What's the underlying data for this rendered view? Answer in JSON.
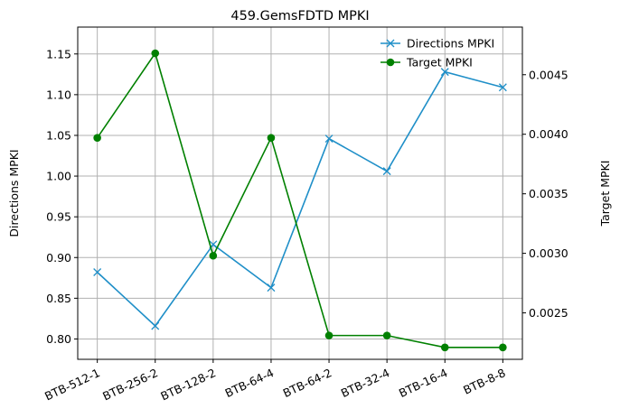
{
  "chart_data": {
    "type": "line",
    "title": "459.GemsFDTD MPKI",
    "categories": [
      "BTB-512-1",
      "BTB-256-2",
      "BTB-128-2",
      "BTB-64-4",
      "BTB-64-2",
      "BTB-32-4",
      "BTB-16-4",
      "BTB-8-8"
    ],
    "ylabel_left": "Directions MPKI",
    "ylabel_right": "Target MPKI",
    "ylim_left": [
      0.775,
      1.183
    ],
    "ylim_right": [
      0.00211,
      0.0049
    ],
    "yticks_left": [
      "0.80",
      "0.85",
      "0.90",
      "0.95",
      "1.00",
      "1.05",
      "1.10",
      "1.15"
    ],
    "yticks_left_values": [
      0.8,
      0.85,
      0.9,
      0.95,
      1.0,
      1.05,
      1.1,
      1.15
    ],
    "yticks_right": [
      "0.0025",
      "0.0030",
      "0.0035",
      "0.0040",
      "0.0045"
    ],
    "yticks_right_values": [
      0.0025,
      0.003,
      0.0035,
      0.004,
      0.0045
    ],
    "grid": true,
    "legend_position": "top-right",
    "series": [
      {
        "name": "Directions MPKI",
        "axis": "left",
        "color": "#1f8fc8",
        "marker": "x",
        "values": [
          0.882,
          0.816,
          0.916,
          0.863,
          1.046,
          1.006,
          1.128,
          1.109
        ]
      },
      {
        "name": "Target MPKI",
        "axis": "right",
        "color": "#008000",
        "marker": "circle",
        "values": [
          0.00397,
          0.00468,
          0.00298,
          0.00397,
          0.00231,
          0.00231,
          0.00221,
          0.00221
        ]
      }
    ]
  }
}
